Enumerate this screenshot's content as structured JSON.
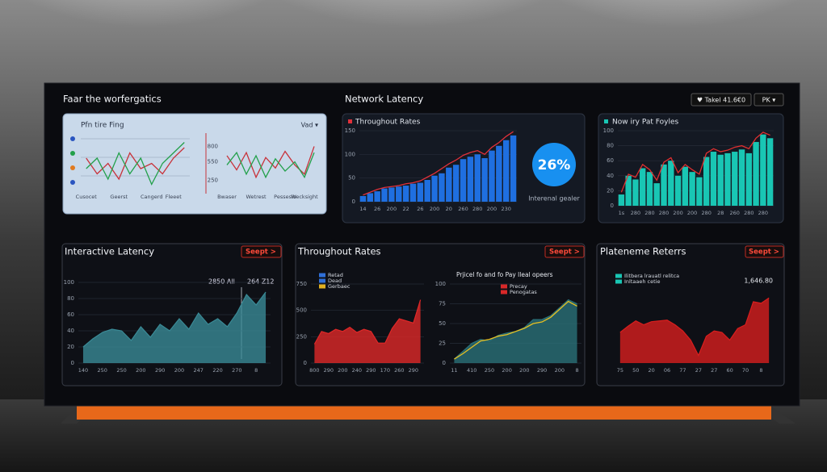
{
  "top_left": {
    "title": "Faar the worfergatics",
    "card_title": "Pfn tire Fing",
    "card_menu": "Vad ▾",
    "charts": [
      {
        "type": "line",
        "ylim": [
          0,
          10
        ],
        "categories": [
          "Cusocet",
          null,
          null,
          "Geerst",
          null,
          null,
          "Cangerd",
          null,
          "Fleeet",
          null
        ],
        "series": [
          {
            "type": "line",
            "color": "#c8323a",
            "values": [
              6,
              3,
              5,
              2,
              7,
              4,
              5,
              3,
              6,
              8
            ]
          },
          {
            "type": "line",
            "color": "#22a04a",
            "values": [
              4,
              6,
              2,
              7,
              3,
              6,
              1,
              5,
              7,
              9
            ]
          }
        ]
      },
      {
        "type": "line",
        "ylim": [
          100,
          950
        ],
        "yticks": [
          250,
          550,
          800
        ],
        "categories": [
          "Bwaser",
          null,
          null,
          "Wetrest",
          null,
          null,
          "Pessesio",
          null,
          "Wecksight",
          null
        ],
        "series": [
          {
            "type": "line",
            "color": "#c8323a",
            "values": [
              650,
              420,
              700,
              300,
              620,
              450,
              720,
              500,
              350,
              800
            ]
          },
          {
            "type": "line",
            "color": "#22a04a",
            "values": [
              500,
              700,
              350,
              650,
              300,
              600,
              400,
              550,
              300,
              700
            ]
          }
        ]
      }
    ]
  },
  "top_middle": {
    "title": "Network Latency",
    "card_title": "Throughout Rates",
    "kpi_value": "26%",
    "kpi_label": "Interenal gealer",
    "chart": {
      "type": "bar",
      "ylim": [
        0,
        150
      ],
      "yticks": [
        0,
        50,
        100,
        150
      ],
      "grid": true,
      "categories": [
        "14",
        null,
        "26",
        null,
        "200",
        null,
        "22",
        null,
        "26",
        null,
        "200",
        null,
        "20",
        null,
        "260",
        null,
        "280",
        null,
        "200",
        null,
        "230",
        null
      ],
      "series": [
        {
          "type": "bar",
          "color": "#1f6fe0",
          "values": [
            12,
            18,
            22,
            28,
            30,
            32,
            34,
            38,
            40,
            46,
            55,
            60,
            72,
            78,
            90,
            95,
            100,
            92,
            108,
            118,
            130,
            140
          ]
        },
        {
          "type": "line",
          "color": "#e0303a",
          "values": [
            14,
            20,
            26,
            30,
            32,
            34,
            38,
            40,
            44,
            52,
            60,
            70,
            80,
            88,
            98,
            104,
            108,
            100,
            115,
            125,
            138,
            148
          ]
        }
      ]
    }
  },
  "top_right": {
    "button_left": "♥ Takel 41.6€0",
    "button_right": "PK ▾",
    "card_title": "Now iry Pat Foyles",
    "chart": {
      "type": "bar",
      "ylim": [
        0,
        100
      ],
      "yticks": [
        0,
        20,
        40,
        60,
        80,
        100
      ],
      "grid": true,
      "categories": [
        "1s",
        null,
        "280",
        null,
        "280",
        null,
        "280",
        null,
        "200",
        null,
        "200",
        null,
        "280",
        null,
        "28",
        null,
        "260",
        null,
        "280",
        null,
        "280",
        null
      ],
      "series": [
        {
          "type": "bar",
          "color": "#19c6b4",
          "values": [
            15,
            40,
            35,
            50,
            45,
            30,
            55,
            60,
            40,
            52,
            45,
            38,
            65,
            72,
            68,
            70,
            72,
            75,
            70,
            85,
            95,
            90
          ]
        },
        {
          "type": "line",
          "color": "#e03030",
          "values": [
            18,
            42,
            38,
            55,
            48,
            34,
            58,
            64,
            44,
            55,
            48,
            42,
            70,
            76,
            72,
            74,
            78,
            80,
            76,
            90,
            98,
            94
          ]
        }
      ]
    }
  },
  "bottom_left": {
    "title": "Interactive Latency",
    "button": "Seept >",
    "annotations": [
      "2850 All",
      "264 Z12"
    ],
    "chart": {
      "type": "area",
      "ylim": [
        0,
        100
      ],
      "yticks": [
        0,
        20,
        40,
        60,
        80,
        100
      ],
      "grid": true,
      "categories": [
        "140",
        null,
        "250",
        null,
        "250",
        null,
        "200",
        null,
        "290",
        null,
        "200",
        null,
        "247",
        null,
        "220",
        null,
        "270",
        null,
        "8",
        null
      ],
      "series": [
        {
          "type": "area",
          "color": "#3a8a96",
          "values": [
            20,
            30,
            38,
            42,
            40,
            28,
            45,
            32,
            48,
            40,
            55,
            42,
            62,
            48,
            55,
            45,
            62,
            85,
            72,
            88
          ]
        }
      ]
    }
  },
  "bottom_middle": {
    "title": "Throughout Rates",
    "button": "Seept >",
    "annotation": "Prjicel fo and fo Pay lleal opeers",
    "charts": [
      {
        "type": "area",
        "ylim": [
          0,
          750
        ],
        "yticks": [
          0,
          250,
          500,
          750
        ],
        "grid": true,
        "categories": [
          "800",
          null,
          "290",
          null,
          "200",
          null,
          "240",
          null,
          "290",
          null,
          "170",
          null,
          "260",
          null,
          "290",
          null
        ],
        "legend": [
          {
            "label": "Retad",
            "color": "#2f6fd8"
          },
          {
            "label": "Dead",
            "color": "#2f6fd8"
          },
          {
            "label": "Gerbaec",
            "color": "#e0b020"
          }
        ],
        "series": [
          {
            "type": "area",
            "color": "#e02828",
            "values": [
              180,
              300,
              280,
              320,
              300,
              340,
              290,
              320,
              300,
              190,
              190,
              330,
              420,
              400,
              380,
              600
            ]
          }
        ]
      },
      {
        "type": "area",
        "ylim": [
          0,
          100
        ],
        "yticks": [
          0,
          25,
          50,
          75,
          100
        ],
        "grid": true,
        "categories": [
          "11",
          null,
          "410",
          null,
          "250",
          null,
          "200",
          null,
          "200",
          null,
          "290",
          null,
          "200",
          null,
          "8"
        ],
        "legend": [
          {
            "label": "Precay",
            "color": "#d82828"
          },
          {
            "label": "Penogatas",
            "color": "#d82828"
          }
        ],
        "series": [
          {
            "type": "area",
            "color": "#2a7078",
            "values": [
              5,
              15,
              25,
              30,
              28,
              35,
              38,
              40,
              45,
              55,
              55,
              60,
              70,
              80,
              75
            ]
          },
          {
            "type": "line",
            "color": "#e8c020",
            "values": [
              5,
              12,
              20,
              28,
              30,
              34,
              36,
              40,
              44,
              50,
              52,
              58,
              68,
              78,
              72
            ]
          }
        ]
      }
    ]
  },
  "bottom_right": {
    "title": "Plateneme Reterrs",
    "button": "Seept >",
    "annotation": "1,646.80",
    "chart": {
      "type": "area",
      "ylim": [
        0,
        100
      ],
      "categories": [
        "75",
        null,
        "50",
        null,
        "20",
        null,
        "06",
        null,
        "77",
        null,
        "27",
        null,
        "27",
        null,
        "60",
        null,
        "70",
        null,
        "8",
        null
      ],
      "legend": [
        {
          "label": "Ilitbera lrauatl relitca",
          "color": "#19c6b4"
        },
        {
          "label": "Inltaaeh cetie",
          "color": "#19c6b4"
        }
      ],
      "series": [
        {
          "type": "area",
          "color": "#d81e1e",
          "values": [
            40,
            48,
            55,
            50,
            54,
            55,
            56,
            50,
            42,
            30,
            10,
            35,
            42,
            40,
            30,
            45,
            50,
            80,
            78,
            85
          ]
        }
      ]
    }
  }
}
